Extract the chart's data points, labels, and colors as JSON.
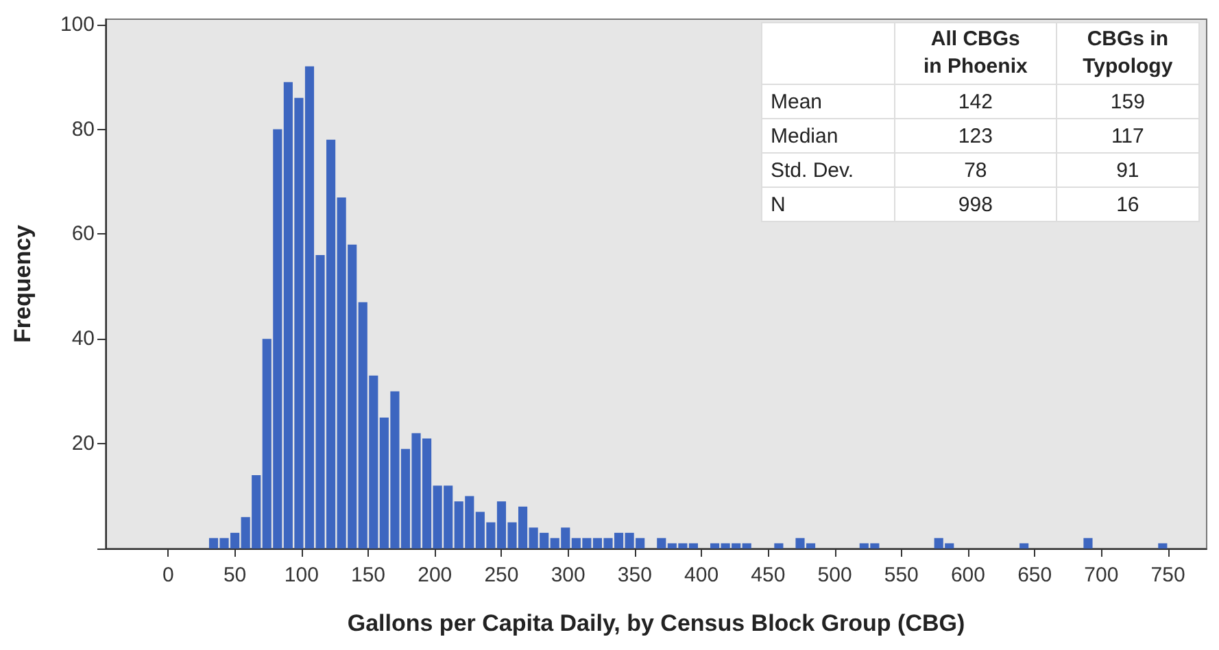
{
  "chart_data": {
    "type": "histogram",
    "xlabel": "Gallons per Capita Daily, by Census Block Group (CBG)",
    "ylabel": "Frequency",
    "color": "#3d66c0",
    "bins": [
      30,
      38,
      46,
      54,
      62,
      70,
      78,
      86,
      94,
      102,
      110,
      118,
      126,
      134,
      142,
      150,
      158,
      166,
      174,
      182,
      190,
      198,
      206,
      214,
      222,
      230,
      238,
      246,
      254,
      262,
      270,
      278,
      286,
      294,
      302,
      310,
      318,
      326,
      334,
      342,
      350,
      358,
      366,
      374,
      382,
      390,
      398,
      406,
      414,
      422,
      430,
      438,
      446,
      454,
      462,
      470,
      478,
      486,
      494,
      502,
      510,
      518,
      526,
      534,
      542,
      550,
      558,
      566,
      574,
      582,
      590,
      598,
      606,
      614,
      622,
      630,
      638,
      646,
      654,
      662,
      670,
      678,
      686,
      694,
      702,
      710,
      718,
      726,
      734,
      742,
      750
    ],
    "values": [
      2,
      2,
      3,
      6,
      14,
      40,
      80,
      89,
      86,
      92,
      56,
      78,
      67,
      58,
      47,
      33,
      25,
      30,
      19,
      22,
      21,
      12,
      12,
      9,
      10,
      7,
      5,
      9,
      5,
      8,
      4,
      3,
      2,
      4,
      2,
      2,
      2,
      2,
      3,
      3,
      2,
      0,
      2,
      1,
      1,
      1,
      0,
      1,
      1,
      1,
      1,
      0,
      0,
      1,
      0,
      2,
      1,
      0,
      0,
      0,
      0,
      1,
      1,
      0,
      0,
      0,
      0,
      0,
      2,
      1,
      0,
      0,
      0,
      0,
      0,
      0,
      1,
      0,
      0,
      0,
      0,
      0,
      2,
      0,
      0,
      0,
      0,
      0,
      0,
      1
    ],
    "xlim": [
      -47,
      779
    ],
    "xticks": [
      0,
      50,
      100,
      150,
      200,
      250,
      300,
      350,
      400,
      450,
      500,
      550,
      600,
      650,
      700,
      750
    ],
    "ylim": [
      0,
      101
    ],
    "yticks": [
      {
        "value": 0,
        "label": null
      },
      20,
      40,
      60,
      80,
      100
    ],
    "grid": false,
    "annotations": [
      "All CBGs\nin Phoenix",
      "CBGs in\nTypology",
      "Mean",
      "142",
      "159",
      "Median",
      "123",
      "117",
      "Std. Dev.",
      "78",
      "91",
      "N",
      "998",
      "16"
    ]
  }
}
